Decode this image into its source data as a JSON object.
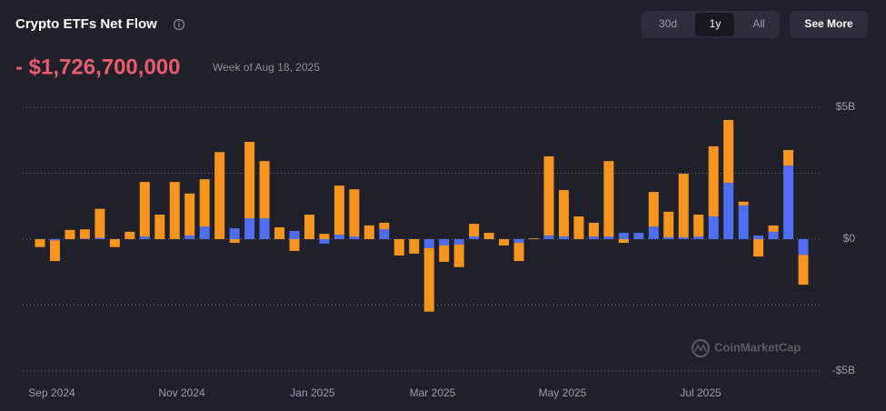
{
  "header": {
    "title": "Crypto ETFs Net Flow",
    "ranges": [
      "30d",
      "1y",
      "All"
    ],
    "active_range": "1y",
    "button": "See More",
    "headline": "- $1,726,700,000",
    "headline_note": "Week of Aug 18, 2025"
  },
  "watermark": "CoinMarketCap",
  "chart_data": {
    "type": "stacked_bar",
    "x_labels": [
      "Sep 2024",
      "Nov 2024",
      "Jan 2025",
      "Mar 2025",
      "May 2025",
      "Jul 2025"
    ],
    "series": [
      {
        "color": "#4f6ef2",
        "values": [
          0,
          -50000000,
          0,
          20000000,
          50000000,
          0,
          0,
          100000000,
          0,
          0,
          140000000,
          480000000,
          0,
          410000000,
          790000000,
          790000000,
          0,
          310000000,
          0,
          -170000000,
          170000000,
          100000000,
          0,
          380000000,
          0,
          0,
          -340000000,
          -240000000,
          -200000000,
          100000000,
          0,
          0,
          -140000000,
          0,
          140000000,
          100000000,
          0,
          100000000,
          100000000,
          240000000,
          240000000,
          480000000,
          70000000,
          70000000,
          100000000,
          860000000,
          2140000000,
          1280000000,
          140000000,
          280000000,
          2790000000,
          -600000000
        ]
      },
      {
        "color": "#f7951f",
        "values": [
          -300000000,
          -780000000,
          350000000,
          350000000,
          1100000000,
          -300000000,
          280000000,
          2070000000,
          930000000,
          2170000000,
          1590000000,
          1790000000,
          3300000000,
          -140000000,
          2900000000,
          2170000000,
          450000000,
          -450000000,
          930000000,
          200000000,
          1860000000,
          1790000000,
          520000000,
          240000000,
          -620000000,
          -550000000,
          -2410000000,
          -620000000,
          -860000000,
          480000000,
          240000000,
          -240000000,
          -690000000,
          30000000,
          3000000000,
          1760000000,
          860000000,
          520000000,
          2860000000,
          -140000000,
          0,
          1310000000,
          970000000,
          2410000000,
          830000000,
          2660000000,
          2380000000,
          140000000,
          -660000000,
          240000000,
          590000000,
          -1126700000
        ]
      }
    ],
    "ylim": [
      -5000000000,
      5000000000
    ],
    "yticks": [
      {
        "value": 5000000000,
        "label": "$5B"
      },
      {
        "value": 0,
        "label": "$0"
      },
      {
        "value": -5000000000,
        "label": "-$5B"
      }
    ],
    "minor_yticks": [
      2500000000,
      -2500000000
    ],
    "grid": true
  }
}
